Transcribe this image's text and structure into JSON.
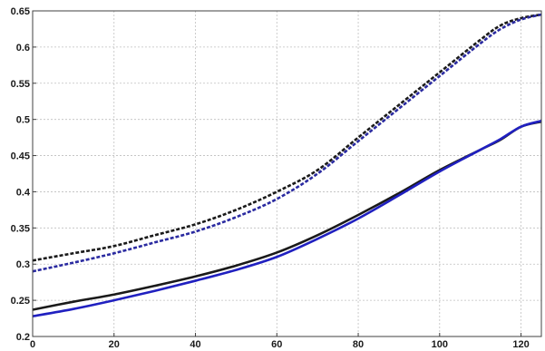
{
  "chart_data": {
    "type": "line",
    "title": "",
    "xlabel": "",
    "ylabel": "",
    "xlim": [
      0,
      125
    ],
    "ylim": [
      0.2,
      0.65
    ],
    "x_ticks": [
      0,
      20,
      40,
      60,
      80,
      100,
      120
    ],
    "x_tick_labels": [
      "0",
      "20",
      "40",
      "60",
      "80",
      "100",
      "120"
    ],
    "y_ticks": [
      0.2,
      0.25,
      0.3,
      0.35,
      0.4,
      0.45,
      0.5,
      0.55,
      0.6,
      0.65
    ],
    "y_tick_labels": [
      "0.2",
      "0.25",
      "0.3",
      "0.35",
      "0.4",
      "0.45",
      "0.5",
      "0.55",
      "0.6",
      "0.65"
    ],
    "grid": true,
    "legend": "none",
    "series": [
      {
        "color": "#1a1a1a",
        "style": "dashed",
        "x": [
          0,
          10,
          20,
          30,
          40,
          50,
          60,
          70,
          80,
          90,
          100,
          110,
          115,
          120,
          125
        ],
        "y": [
          0.305,
          0.315,
          0.325,
          0.34,
          0.355,
          0.375,
          0.4,
          0.43,
          0.475,
          0.52,
          0.565,
          0.61,
          0.63,
          0.64,
          0.645
        ]
      },
      {
        "color": "#2a2aa0",
        "style": "dashed",
        "x": [
          0,
          10,
          20,
          30,
          40,
          50,
          60,
          70,
          80,
          90,
          100,
          110,
          115,
          120,
          125
        ],
        "y": [
          0.29,
          0.302,
          0.315,
          0.33,
          0.345,
          0.365,
          0.39,
          0.425,
          0.47,
          0.515,
          0.56,
          0.605,
          0.625,
          0.638,
          0.645
        ]
      },
      {
        "color": "#1a1a1a",
        "style": "solid",
        "x": [
          0,
          10,
          20,
          30,
          40,
          50,
          60,
          70,
          80,
          90,
          100,
          110,
          115,
          120,
          125
        ],
        "y": [
          0.237,
          0.248,
          0.258,
          0.27,
          0.283,
          0.298,
          0.316,
          0.34,
          0.368,
          0.398,
          0.43,
          0.458,
          0.472,
          0.49,
          0.497
        ]
      },
      {
        "color": "#2020c0",
        "style": "solid",
        "x": [
          0,
          10,
          20,
          30,
          40,
          50,
          60,
          70,
          80,
          90,
          100,
          110,
          115,
          120,
          125
        ],
        "y": [
          0.228,
          0.238,
          0.25,
          0.263,
          0.277,
          0.292,
          0.31,
          0.335,
          0.363,
          0.395,
          0.428,
          0.458,
          0.473,
          0.49,
          0.498
        ]
      }
    ]
  }
}
